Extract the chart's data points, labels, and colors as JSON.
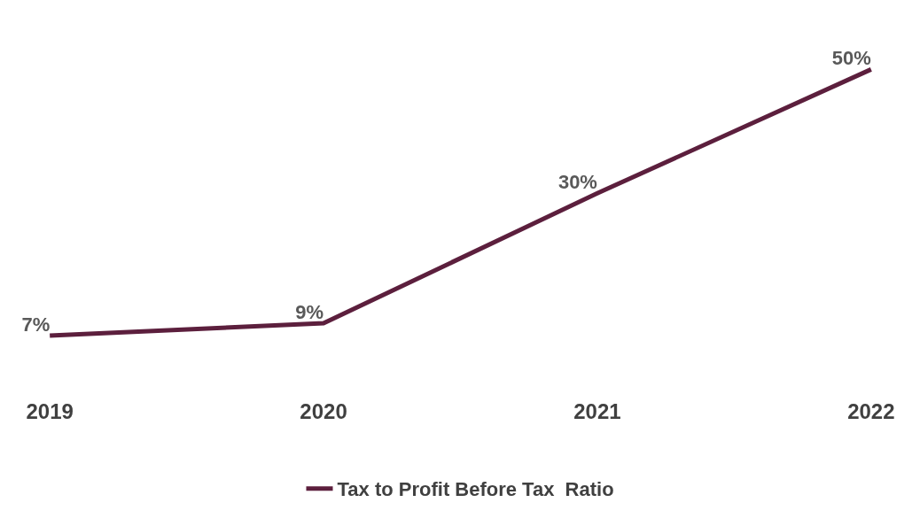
{
  "chart_data": {
    "type": "line",
    "categories": [
      "2019",
      "2020",
      "2021",
      "2022"
    ],
    "series": [
      {
        "name": "Tax to Profit Before Tax  Ratio",
        "color": "#5c1f3d",
        "values": [
          7,
          9,
          30,
          50
        ],
        "value_labels": [
          "7%",
          "9%",
          "30%",
          "50%"
        ]
      }
    ],
    "legend": "bottom",
    "marker": "none",
    "line_style": "solid"
  }
}
